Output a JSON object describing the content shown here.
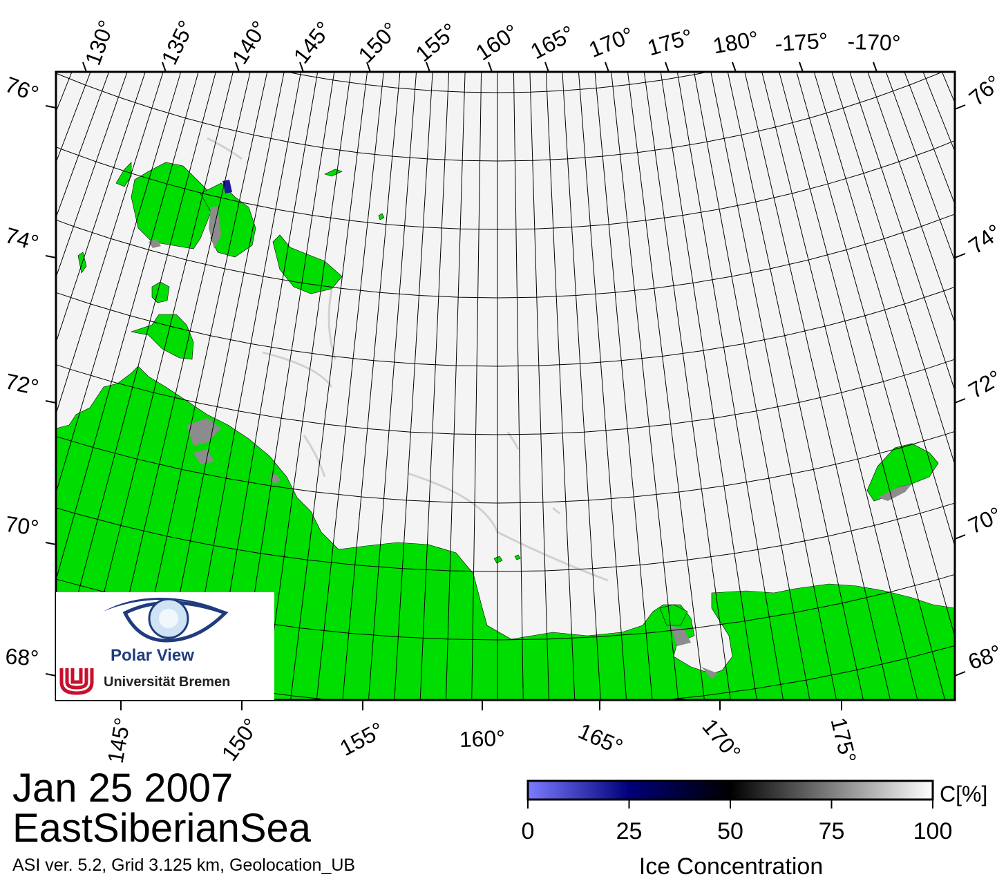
{
  "date": "Jan 25 2007",
  "region": "EastSiberianSea",
  "footer": "ASI ver. 5.2,  Grid 3.125 km, Geolocation_UB",
  "logo": {
    "name": "Polar View",
    "institution": "Universität Bremen"
  },
  "colorbar": {
    "unit": "C[%]",
    "title": "Ice Concentration",
    "ticks": [
      "0",
      "25",
      "50",
      "75",
      "100"
    ],
    "min": 0,
    "max": 100,
    "colors": [
      "#7b7bff",
      "#00007a",
      "#000000",
      "#7f7f7f",
      "#ffffff"
    ]
  },
  "map": {
    "land_color": "#00dd00",
    "ice_color": "#f4f4f4",
    "grid_color": "#000000",
    "lat_labels_left": [
      "76°",
      "74°",
      "72°",
      "70°",
      "68°"
    ],
    "lat_labels_right": [
      "76°",
      "74°",
      "72°",
      "70°",
      "68°"
    ],
    "lon_labels_top": [
      "130°",
      "135°",
      "140°",
      "145°",
      "150°",
      "155°",
      "160°",
      "165°",
      "170°",
      "175°",
      "180°",
      "-175°",
      "-170°"
    ],
    "lon_labels_bottom": [
      "145°",
      "150°",
      "155°",
      "160°",
      "165°",
      "170°",
      "175°"
    ]
  }
}
